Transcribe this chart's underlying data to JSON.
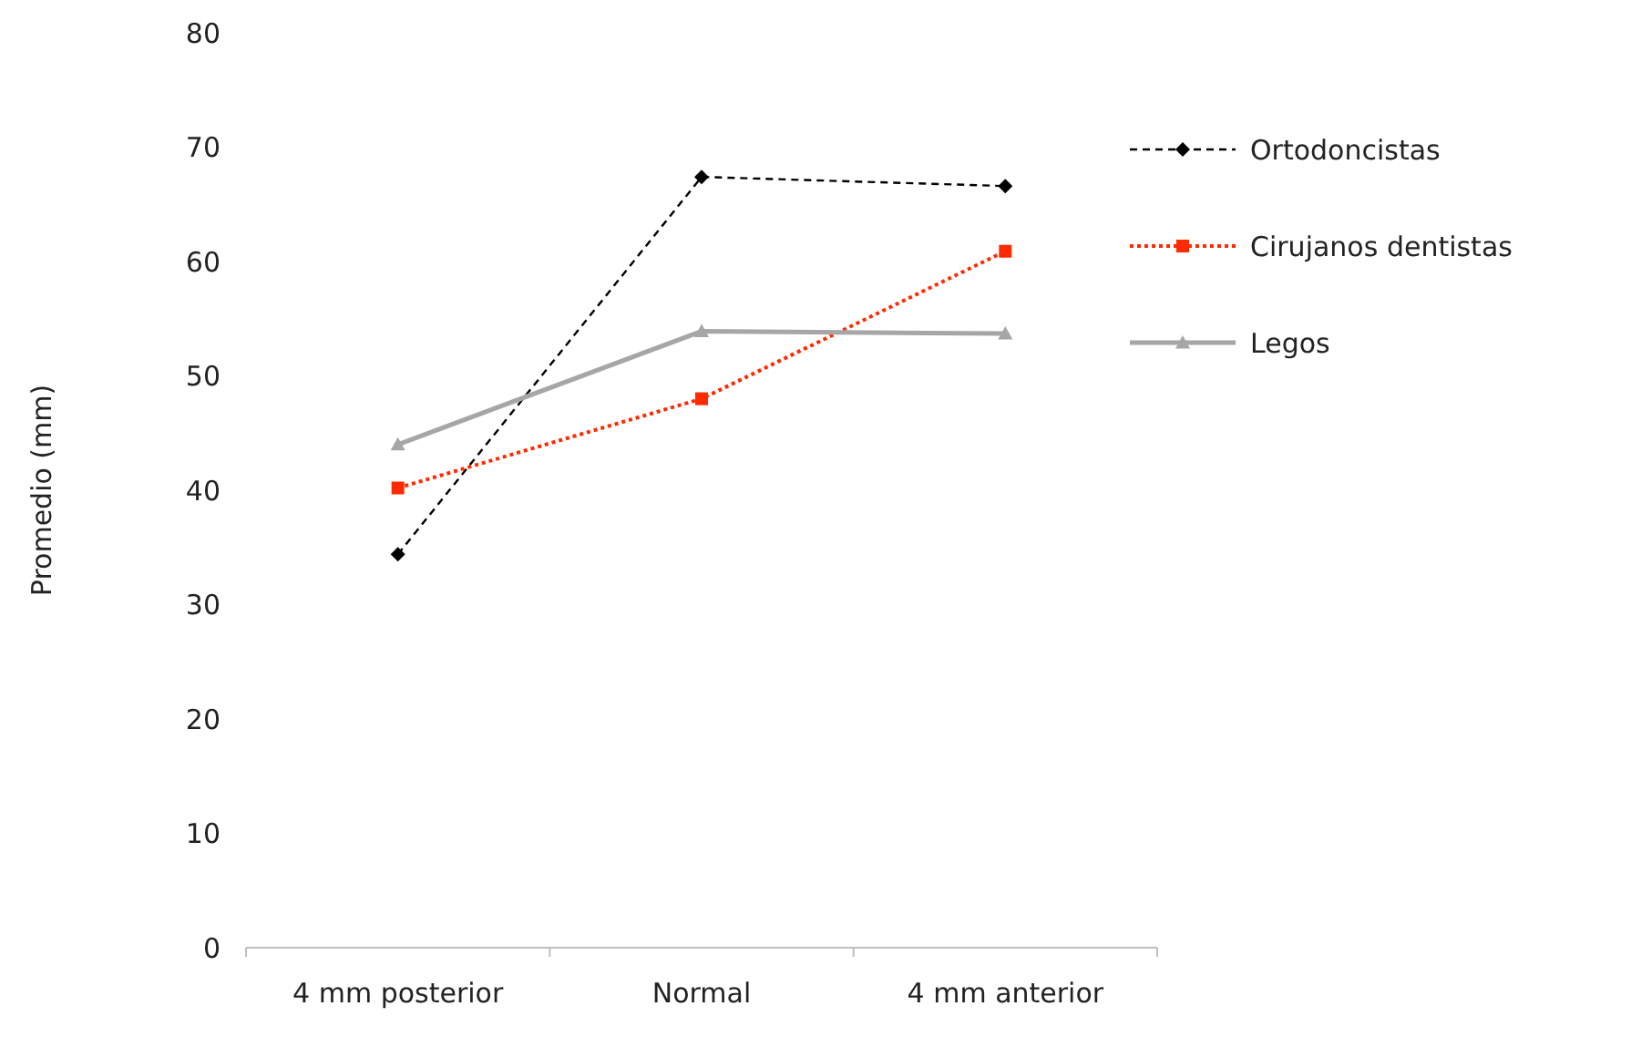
{
  "chart_data": {
    "type": "line",
    "ylabel": "Promedio (mm)",
    "categories": [
      "4 mm posterior",
      "Normal",
      "4 mm anterior"
    ],
    "ylim": [
      0,
      80
    ],
    "yticks": [
      0,
      10,
      20,
      30,
      40,
      50,
      60,
      70,
      80
    ],
    "grid": false,
    "legend": "right",
    "series": [
      {
        "name": "Ortodoncistas",
        "color": "#000000",
        "marker": "diamond",
        "line_style": "dashed",
        "values": [
          34.4,
          67.4,
          66.6
        ]
      },
      {
        "name": "Cirujanos dentistas",
        "color": "#ff2a00",
        "marker": "square",
        "line_style": "dotted",
        "values": [
          40.2,
          48.0,
          60.9
        ]
      },
      {
        "name": "Legos",
        "color": "#a6a6a6",
        "marker": "triangle",
        "line_style": "solid",
        "values": [
          44.0,
          53.9,
          53.7
        ]
      }
    ]
  }
}
